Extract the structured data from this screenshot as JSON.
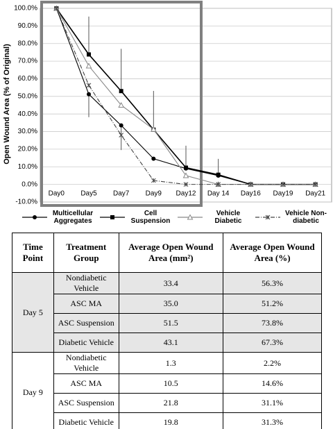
{
  "chart_data": {
    "type": "line",
    "y_label": "Open Wound Area (% of Original)",
    "categories": [
      "Day0",
      "Day5",
      "Day7",
      "Day9",
      "Day12",
      "Day 14",
      "Day16",
      "Day19",
      "Day21"
    ],
    "ylim": [
      -10,
      100
    ],
    "yticks": [
      {
        "value": -10,
        "label": "-10.0%"
      },
      {
        "value": 0,
        "label": "0.0%"
      },
      {
        "value": 10,
        "label": "10.0%"
      },
      {
        "value": 20,
        "label": "20.0%"
      },
      {
        "value": 30,
        "label": "30.0%"
      },
      {
        "value": 40,
        "label": "40.0%"
      },
      {
        "value": 50,
        "label": "50.0%"
      },
      {
        "value": 60,
        "label": "60.0%"
      },
      {
        "value": 70,
        "label": "70.0%"
      },
      {
        "value": 80,
        "label": "80.0%"
      },
      {
        "value": 90,
        "label": "90.0%"
      },
      {
        "value": 100,
        "label": "100.0%"
      }
    ],
    "grid": true,
    "series": [
      {
        "name": "Multicellular Aggregates",
        "color": "#000000",
        "marker": "circle",
        "dash": "none",
        "error_direction": "down",
        "values": [
          100,
          51.2,
          33.5,
          14.6,
          9,
          5,
          0,
          0,
          0
        ],
        "errors": [
          0,
          13,
          14,
          0,
          0,
          0,
          0,
          0,
          0
        ]
      },
      {
        "name": "Cell Suspension",
        "color": "#000000",
        "marker": "square",
        "dash": "none",
        "error_direction": "up",
        "values": [
          100,
          73.8,
          53,
          31.1,
          9.5,
          5.5,
          0,
          0,
          0
        ],
        "errors": [
          0,
          21.5,
          24,
          22,
          12.5,
          9,
          0,
          0,
          0
        ]
      },
      {
        "name": "Vehicle Diabetic",
        "color": "#888888",
        "marker": "triangle",
        "dash": "none",
        "error_direction": "up",
        "values": [
          100,
          67.3,
          45,
          31.3,
          5,
          0,
          0,
          0,
          0
        ],
        "errors": [
          0,
          0,
          0,
          0,
          0,
          0,
          0,
          0,
          0
        ]
      },
      {
        "name": "Vehicle Non-diabetic",
        "color": "#444444",
        "marker": "x",
        "dash": "6 2 1 2",
        "error_direction": "up",
        "values": [
          100,
          56.3,
          28,
          2.2,
          0,
          0,
          0,
          0,
          0
        ],
        "errors": [
          0,
          0,
          0,
          0,
          0,
          0,
          0,
          0,
          0
        ]
      }
    ]
  },
  "table": {
    "columns": [
      "Time Point",
      "Treatment Group",
      "Average Open Wound Area (mm²)",
      "Average Open Wound Area (%)"
    ],
    "groups": [
      {
        "time_point": "Day 5",
        "rows": [
          [
            "Nondiabetic Vehicle",
            "33.4",
            "56.3%"
          ],
          [
            "ASC MA",
            "35.0",
            "51.2%"
          ],
          [
            "ASC Suspension",
            "51.5",
            "73.8%"
          ],
          [
            "Diabetic Vehicle",
            "43.1",
            "67.3%"
          ]
        ]
      },
      {
        "time_point": "Day 9",
        "rows": [
          [
            "Nondiabetic Vehicle",
            "1.3",
            "2.2%"
          ],
          [
            "ASC MA",
            "10.5",
            "14.6%"
          ],
          [
            "ASC Suspension",
            "21.8",
            "31.1%"
          ],
          [
            "Diabetic Vehicle",
            "19.8",
            "31.3%"
          ]
        ]
      }
    ]
  }
}
